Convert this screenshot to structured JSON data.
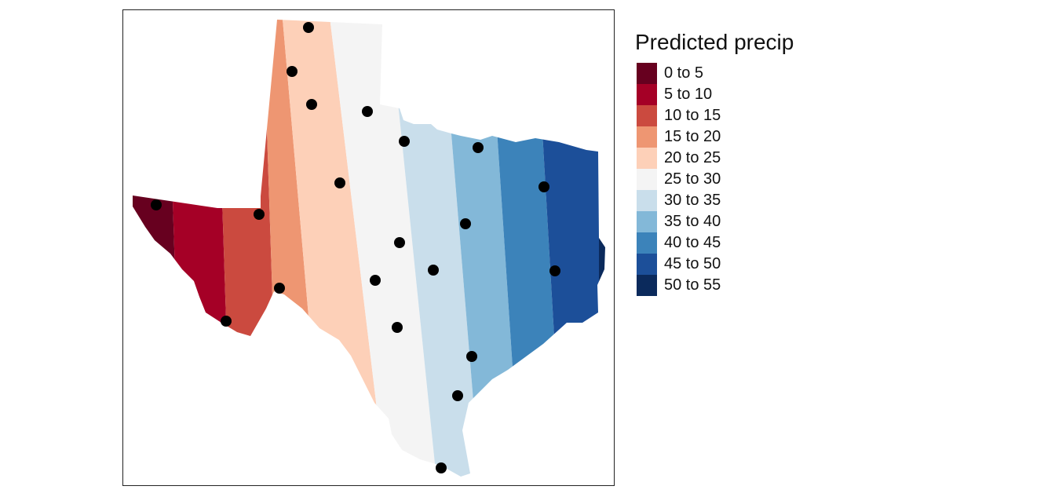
{
  "legend": {
    "title": "Predicted precip",
    "classes": [
      {
        "label": "0 to 5",
        "color": "#67001F"
      },
      {
        "label": "5 to 10",
        "color": "#A50026"
      },
      {
        "label": "10 to 15",
        "color": "#CB4A3F"
      },
      {
        "label": "15 to 20",
        "color": "#EE9672"
      },
      {
        "label": "20 to 25",
        "color": "#FDD0B8"
      },
      {
        "label": "25 to 30",
        "color": "#F4F4F4"
      },
      {
        "label": "30 to 35",
        "color": "#C9DEEB"
      },
      {
        "label": "35 to 40",
        "color": "#83B8D8"
      },
      {
        "label": "40 to 45",
        "color": "#3C83BA"
      },
      {
        "label": "45 to 50",
        "color": "#1C4F99"
      },
      {
        "label": "50 to 55",
        "color": "#0B2A5C"
      }
    ]
  },
  "map": {
    "region": "Texas",
    "stations_count_visible": 20,
    "station_color": "#000000"
  }
}
